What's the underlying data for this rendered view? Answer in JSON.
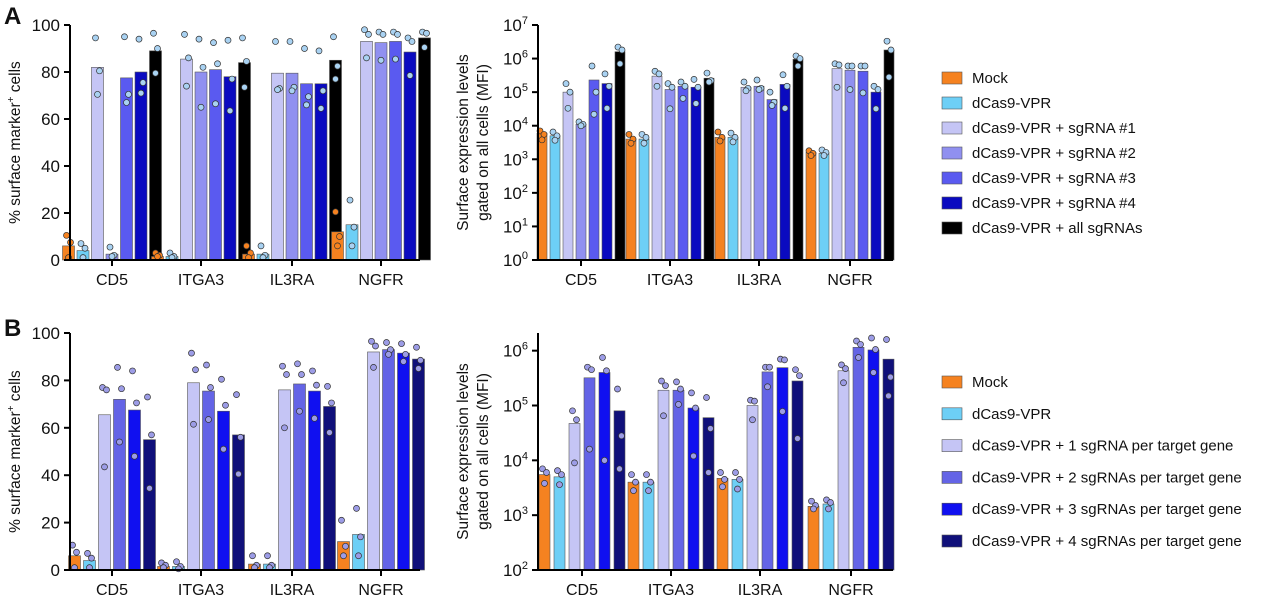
{
  "colors": {
    "A": [
      "#f58220",
      "#6dcff6",
      "#c5c5f5",
      "#9090f0",
      "#5a5af0",
      "#0a0ac0",
      "#000000"
    ],
    "B": [
      "#f58220",
      "#6dcff6",
      "#c5c5f5",
      "#6464e6",
      "#1010f0",
      "#10107a"
    ],
    "dotA_mock": "#f58220",
    "dotA": "#a9d2f2",
    "dotB": "#9c9ce6"
  },
  "legendA": [
    "Mock",
    "dCas9-VPR",
    "dCas9-VPR + sgRNA #1",
    "dCas9-VPR + sgRNA #2",
    "dCas9-VPR + sgRNA #3",
    "dCas9-VPR + sgRNA #4",
    "dCas9-VPR + all sgRNAs"
  ],
  "legendB": [
    "Mock",
    "dCas9-VPR",
    "dCas9-VPR + 1 sgRNA per target gene",
    "dCas9-VPR + 2 sgRNAs per target gene",
    "dCas9-VPR + 3 sgRNAs per target gene",
    "dCas9-VPR + 4 sgRNAs per target gene"
  ],
  "panel_labels": [
    "A",
    "B"
  ],
  "chart_data": [
    {
      "id": "A-left",
      "type": "bar",
      "panel": "A",
      "scale": "linear",
      "ylabel_main": "% surface marker",
      "ylabel_sup": "+",
      "ylabel_end": " cells",
      "ylim": [
        0,
        100
      ],
      "yticks": [
        "0",
        "20",
        "40",
        "60",
        "80",
        "100"
      ],
      "ytick_values": [
        0,
        20,
        40,
        60,
        80,
        100
      ],
      "categories": [
        "CD5",
        "ITGA3",
        "IL3RA",
        "NGFR"
      ],
      "series_values": [
        [
          6,
          4,
          82,
          2.5,
          77.5,
          80,
          89
        ],
        [
          1.5,
          1.5,
          85.5,
          80,
          81,
          78,
          84
        ],
        [
          2.5,
          2.5,
          79.5,
          79.5,
          75,
          75,
          85
        ],
        [
          12,
          15,
          93,
          92.5,
          93,
          88.5,
          94.5
        ]
      ],
      "points": [
        [
          [
            10.5,
            7.5,
            1
          ],
          [
            7,
            5,
            1
          ],
          [
            94.5,
            80.5,
            70.5
          ],
          [
            5.5,
            2,
            1.5
          ],
          [
            95,
            70.5,
            67
          ],
          [
            94,
            75.5,
            71
          ],
          [
            96.5,
            90,
            79.5
          ]
        ],
        [
          [
            3,
            2,
            1.5
          ],
          [
            3,
            1.5,
            1
          ],
          [
            96,
            86,
            74
          ],
          [
            94,
            82,
            65
          ],
          [
            92.5,
            83.5,
            66.5
          ],
          [
            93.5,
            77,
            63.5
          ],
          [
            94.5,
            84.5,
            73.5
          ]
        ],
        [
          [
            6,
            3,
            1
          ],
          [
            6,
            2,
            1
          ],
          [
            93,
            73,
            72.5
          ],
          [
            93,
            73.5,
            72
          ],
          [
            90,
            69.5,
            66
          ],
          [
            89,
            72,
            64.5
          ],
          [
            95,
            82.5,
            77
          ]
        ],
        [
          [
            20.5,
            10,
            6
          ],
          [
            25.5,
            14,
            6
          ],
          [
            98,
            96,
            86
          ],
          [
            97,
            96,
            85
          ],
          [
            97,
            96,
            85.5
          ],
          [
            94.5,
            93,
            78.5
          ],
          [
            97,
            96.5,
            90.5
          ]
        ]
      ]
    },
    {
      "id": "A-right",
      "type": "bar",
      "panel": "A",
      "scale": "log",
      "ylabel_line1": "Surface expression levels",
      "ylabel_line2": "gated on all cells (MFI)",
      "ylim": [
        1,
        10000000
      ],
      "yticks_base": "10",
      "yticks_exp": [
        "0",
        "1",
        "2",
        "3",
        "4",
        "5",
        "6",
        "7"
      ],
      "categories": [
        "CD5",
        "ITGA3",
        "IL3RA",
        "NGFR"
      ],
      "series_values": [
        [
          6000,
          5000,
          100000,
          11000,
          230000,
          180000,
          1600000
        ],
        [
          4000,
          4000,
          300000,
          120000,
          150000,
          140000,
          260000
        ],
        [
          4500,
          4500,
          140000,
          150000,
          60000,
          170000,
          950000
        ],
        [
          1600,
          1500,
          500000,
          450000,
          420000,
          100000,
          1800000
        ]
      ],
      "points": [
        [
          [
            7000,
            5500,
            3800
          ],
          [
            6500,
            5000,
            3700
          ],
          [
            180000,
            100000,
            33000
          ],
          [
            13000,
            11000,
            10000
          ],
          [
            600000,
            100000,
            22000
          ],
          [
            350000,
            150000,
            33000
          ],
          [
            2200000,
            1800000,
            700000
          ]
        ],
        [
          [
            5500,
            4000,
            3000
          ],
          [
            5500,
            4500,
            3000
          ],
          [
            420000,
            350000,
            150000
          ],
          [
            180000,
            140000,
            32000
          ],
          [
            200000,
            150000,
            65000
          ],
          [
            240000,
            140000,
            46000
          ],
          [
            370000,
            220000,
            200000
          ]
        ],
        [
          [
            6500,
            4500,
            3500
          ],
          [
            6000,
            4500,
            3300
          ],
          [
            200000,
            130000,
            110000
          ],
          [
            230000,
            130000,
            120000
          ],
          [
            100000,
            50000,
            40000
          ],
          [
            330000,
            150000,
            33000
          ],
          [
            1200000,
            1000000,
            600000
          ]
        ],
        [
          [
            1800,
            1500,
            1300
          ],
          [
            1900,
            1600,
            1300
          ],
          [
            700000,
            650000,
            140000
          ],
          [
            600000,
            600000,
            120000
          ],
          [
            600000,
            600000,
            95000
          ],
          [
            150000,
            120000,
            32000
          ],
          [
            3300000,
            1800000,
            280000
          ]
        ]
      ]
    },
    {
      "id": "B-left",
      "type": "bar",
      "panel": "B",
      "scale": "linear",
      "ylabel_main": "% surface marker",
      "ylabel_sup": "+",
      "ylabel_end": " cells",
      "ylim": [
        0,
        100
      ],
      "yticks": [
        "0",
        "20",
        "40",
        "60",
        "80",
        "100"
      ],
      "ytick_values": [
        0,
        20,
        40,
        60,
        80,
        100
      ],
      "categories": [
        "CD5",
        "ITGA3",
        "IL3RA",
        "NGFR"
      ],
      "series_values": [
        [
          6,
          4,
          65.5,
          72,
          67.5,
          55
        ],
        [
          1.5,
          1.5,
          79,
          75.5,
          67,
          57
        ],
        [
          2.5,
          2.5,
          76,
          78.5,
          75.5,
          69
        ],
        [
          12,
          15,
          92,
          93,
          91.5,
          89
        ]
      ],
      "points": [
        [
          [
            10.5,
            7.5,
            1
          ],
          [
            7,
            5,
            1
          ],
          [
            77,
            76,
            43.5
          ],
          [
            85.5,
            76.5,
            54
          ],
          [
            84,
            70.5,
            48
          ],
          [
            73,
            57,
            34.5
          ]
        ],
        [
          [
            3,
            2,
            1
          ],
          [
            3.5,
            1.5,
            0.5
          ],
          [
            91.5,
            84.5,
            61.5
          ],
          [
            86.5,
            77,
            63.5
          ],
          [
            80.5,
            69.5,
            51
          ],
          [
            74,
            56,
            40.5
          ]
        ],
        [
          [
            6,
            2,
            1
          ],
          [
            6,
            2,
            1
          ],
          [
            86,
            82.5,
            60
          ],
          [
            87,
            82.5,
            67
          ],
          [
            84,
            78,
            64
          ],
          [
            77.5,
            70.5,
            58
          ]
        ],
        [
          [
            21,
            10,
            6
          ],
          [
            26,
            14,
            6
          ],
          [
            96.5,
            94.5,
            85.5
          ],
          [
            96,
            93,
            91
          ],
          [
            95.5,
            91,
            88
          ],
          [
            94,
            88.5,
            85
          ]
        ]
      ]
    },
    {
      "id": "B-right",
      "type": "bar",
      "panel": "B",
      "scale": "log",
      "ylabel_line1": "Surface expression levels",
      "ylabel_line2": "gated on all cells (MFI)",
      "ylim": [
        100,
        2100000
      ],
      "yticks_base": "10",
      "yticks_exp": [
        "2",
        "3",
        "4",
        "5",
        "6"
      ],
      "categories": [
        "CD5",
        "ITGA3",
        "IL3RA",
        "NGFR"
      ],
      "series_values": [
        [
          5500,
          5000,
          47000,
          320000,
          400000,
          80000
        ],
        [
          4000,
          4000,
          190000,
          190000,
          90000,
          60000
        ],
        [
          4700,
          4500,
          100000,
          410000,
          490000,
          280000
        ],
        [
          1450,
          1600,
          430000,
          1150000,
          1030000,
          700000
        ]
      ],
      "points": [
        [
          [
            7000,
            6000,
            3800
          ],
          [
            6500,
            5500,
            3600
          ],
          [
            80000,
            55000,
            9000
          ],
          [
            500000,
            450000,
            16000
          ],
          [
            750000,
            430000,
            10000
          ],
          [
            200000,
            28000,
            7000
          ]
        ],
        [
          [
            5500,
            4000,
            2800
          ],
          [
            5500,
            4000,
            2800
          ],
          [
            280000,
            230000,
            65000
          ],
          [
            270000,
            200000,
            105000
          ],
          [
            170000,
            90000,
            12000
          ],
          [
            140000,
            38000,
            6000
          ]
        ],
        [
          [
            6000,
            4500,
            3300
          ],
          [
            6000,
            4500,
            3000
          ],
          [
            125000,
            120000,
            55000
          ],
          [
            500000,
            500000,
            220000
          ],
          [
            700000,
            680000,
            78000
          ],
          [
            450000,
            350000,
            25000
          ]
        ],
        [
          [
            1800,
            1500,
            1300
          ],
          [
            1900,
            1700,
            1300
          ],
          [
            550000,
            470000,
            260000
          ],
          [
            1500000,
            1300000,
            750000
          ],
          [
            1700000,
            1050000,
            400000
          ],
          [
            1600000,
            330000,
            150000
          ]
        ]
      ]
    }
  ]
}
